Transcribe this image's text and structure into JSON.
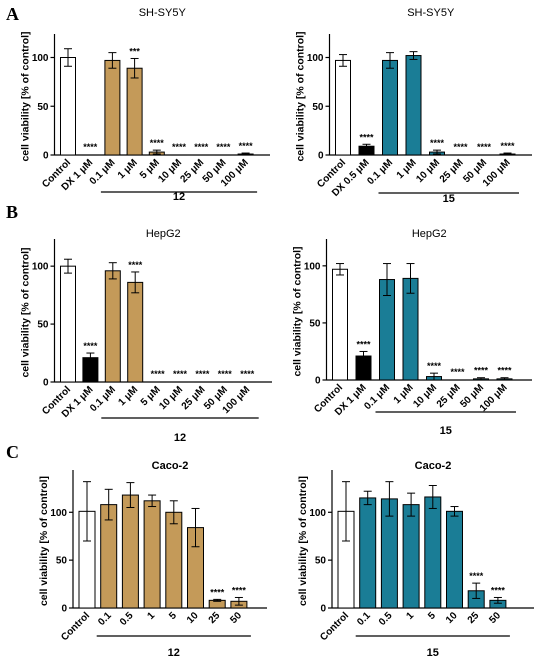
{
  "panel_labels": [
    "A",
    "B",
    "C"
  ],
  "colors": {
    "white": "#ffffff",
    "black": "#000000",
    "compound12": "#c49a59",
    "compound15": "#1a7d96"
  },
  "ylabel": "cell viability [% of control]",
  "chart_data": [
    {
      "id": "A1",
      "type": "bar",
      "title": "SH-SY5Y",
      "ylim": [
        0,
        120
      ],
      "yticks": [
        "0",
        "50",
        "100"
      ],
      "categories": [
        "Control",
        "DX 1 μM",
        "0.1 μM",
        "1 μM",
        "5 μM",
        "10 μM",
        "25 μM",
        "50 μM",
        "100 μM"
      ],
      "values": [
        100,
        0,
        97,
        89,
        3,
        0,
        0,
        0,
        1
      ],
      "errors": [
        9,
        0,
        8,
        10,
        2,
        0,
        0,
        0,
        1
      ],
      "fills": [
        "white",
        "black",
        "compound12",
        "compound12",
        "compound12",
        "compound12",
        "compound12",
        "compound12",
        "compound12"
      ],
      "annotations": [
        "",
        "****",
        "",
        "***",
        "****",
        "****",
        "****",
        "****",
        "****"
      ],
      "group_label": "12",
      "group_from": 2,
      "group_to": 8
    },
    {
      "id": "A2",
      "type": "bar",
      "title": "SH-SY5Y",
      "ylim": [
        0,
        120
      ],
      "yticks": [
        "0",
        "50",
        "100"
      ],
      "categories": [
        "Control",
        "DX 0.5 μM",
        "0.1 μM",
        "1 μM",
        "10 μM",
        "25 μM",
        "50 μM",
        "100 μM"
      ],
      "values": [
        97,
        9,
        97,
        102,
        3,
        0,
        0,
        1
      ],
      "errors": [
        6,
        2,
        8,
        4,
        2,
        0,
        0,
        1
      ],
      "fills": [
        "white",
        "black",
        "compound15",
        "compound15",
        "compound15",
        "compound15",
        "compound15",
        "compound15"
      ],
      "annotations": [
        "",
        "****",
        "",
        "",
        "****",
        "****",
        "****",
        "****"
      ],
      "group_label": "15",
      "group_from": 2,
      "group_to": 7
    },
    {
      "id": "B1",
      "type": "bar",
      "title": "HepG2",
      "ylim": [
        0,
        120
      ],
      "yticks": [
        "0",
        "50",
        "100"
      ],
      "categories": [
        "Control",
        "DX 1 μM",
        "0.1 μM",
        "1 μM",
        "5 μM",
        "10 μM",
        "25 μM",
        "50 μM",
        "100 μM"
      ],
      "values": [
        100,
        21,
        96,
        86,
        0,
        0,
        0,
        0,
        0
      ],
      "errors": [
        6,
        4,
        7,
        9,
        0,
        0,
        0,
        0,
        0
      ],
      "fills": [
        "white",
        "black",
        "compound12",
        "compound12",
        "compound12",
        "compound12",
        "compound12",
        "compound12",
        "compound12"
      ],
      "annotations": [
        "",
        "****",
        "",
        "****",
        "****",
        "****",
        "****",
        "****",
        "****"
      ],
      "group_label": "12",
      "group_from": 2,
      "group_to": 8
    },
    {
      "id": "B2",
      "type": "bar",
      "title": "HepG2",
      "ylim": [
        0,
        120
      ],
      "yticks": [
        "0",
        "50",
        "100"
      ],
      "categories": [
        "Control",
        "DX 1 μM",
        "0.1 μM",
        "1 μM",
        "10 μM",
        "25 μM",
        "50 μM",
        "100 μM"
      ],
      "values": [
        97,
        21,
        88,
        89,
        3,
        0,
        1,
        1
      ],
      "errors": [
        5,
        4,
        14,
        13,
        3,
        0,
        1,
        1
      ],
      "fills": [
        "white",
        "black",
        "compound15",
        "compound15",
        "compound15",
        "compound15",
        "compound15",
        "compound15"
      ],
      "annotations": [
        "",
        "****",
        "",
        "",
        "****",
        "****",
        "****",
        "****"
      ],
      "group_label": "15",
      "group_from": 2,
      "group_to": 7
    },
    {
      "id": "C1",
      "type": "bar",
      "title": "Caco-2",
      "ylim": [
        0,
        140
      ],
      "yticks": [
        "0",
        "50",
        "100"
      ],
      "categories": [
        "Control",
        "0.1",
        "0.5",
        "1",
        "5",
        "10",
        "25",
        "50"
      ],
      "values": [
        101,
        108,
        118,
        112,
        100,
        84,
        8,
        7
      ],
      "errors": [
        31,
        16,
        13,
        6,
        12,
        20,
        1,
        4
      ],
      "fills": [
        "white",
        "compound12",
        "compound12",
        "compound12",
        "compound12",
        "compound12",
        "compound12",
        "compound12"
      ],
      "annotations": [
        "",
        "",
        "",
        "",
        "",
        "",
        "****",
        "****"
      ],
      "group_label": "12",
      "group_from": 1,
      "group_to": 7
    },
    {
      "id": "C2",
      "type": "bar",
      "title": "Caco-2",
      "ylim": [
        0,
        140
      ],
      "yticks": [
        "0",
        "50",
        "100"
      ],
      "categories": [
        "Control",
        "0.1",
        "0.5",
        "1",
        "5",
        "10",
        "25",
        "50"
      ],
      "values": [
        101,
        115,
        114,
        108,
        116,
        101,
        18,
        8
      ],
      "errors": [
        31,
        7,
        18,
        12,
        12,
        5,
        8,
        3
      ],
      "fills": [
        "white",
        "compound15",
        "compound15",
        "compound15",
        "compound15",
        "compound15",
        "compound15",
        "compound15"
      ],
      "annotations": [
        "",
        "",
        "",
        "",
        "",
        "",
        "****",
        "****"
      ],
      "group_label": "15",
      "group_from": 1,
      "group_to": 7
    }
  ]
}
